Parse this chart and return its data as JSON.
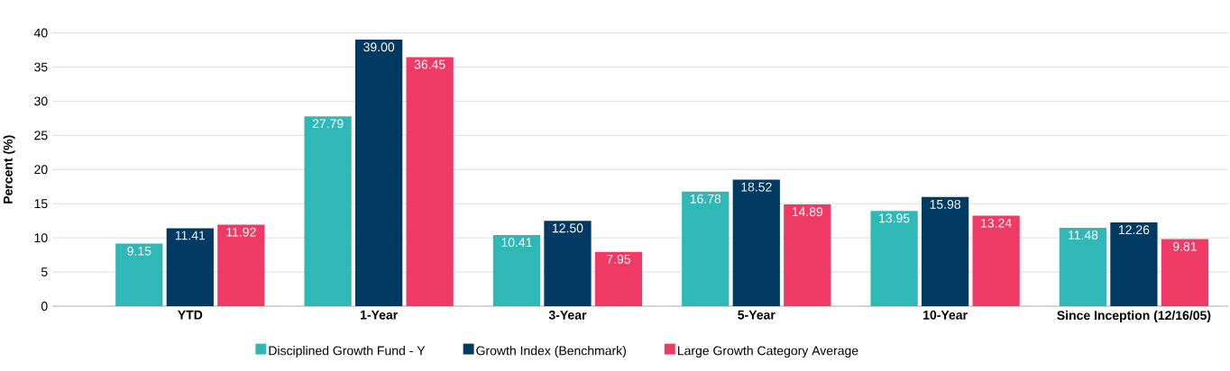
{
  "chart_data": {
    "type": "bar",
    "ylabel": "Percent (%)",
    "categories": [
      "YTD",
      "1-Year",
      "3-Year",
      "5-Year",
      "10-Year",
      "Since Inception (12/16/05)"
    ],
    "series": [
      {
        "name": "Disciplined Growth Fund - Y",
        "color": "#2fb8b6",
        "values": [
          9.15,
          27.79,
          10.41,
          16.78,
          13.95,
          11.48
        ],
        "value_labels": [
          "9.15",
          "27.79",
          "10.41",
          "16.78",
          "13.95",
          "11.48"
        ]
      },
      {
        "name": "Growth Index (Benchmark)",
        "color": "#003a63",
        "values": [
          11.41,
          39.0,
          12.5,
          18.52,
          15.98,
          12.26
        ],
        "value_labels": [
          "11.41",
          "39.00",
          "12.50",
          "18.52",
          "15.98",
          "12.26"
        ]
      },
      {
        "name": "Large Growth Category Average",
        "color": "#ef3a65",
        "values": [
          11.92,
          36.45,
          7.95,
          14.89,
          13.24,
          9.81
        ],
        "value_labels": [
          "11.92",
          "36.45",
          "7.95",
          "14.89",
          "13.24",
          "9.81"
        ]
      }
    ],
    "ylim": [
      0,
      40
    ],
    "yticks": [
      0,
      5,
      10,
      15,
      20,
      25,
      30,
      35,
      40
    ],
    "grid": "y",
    "legend": "bottom"
  }
}
